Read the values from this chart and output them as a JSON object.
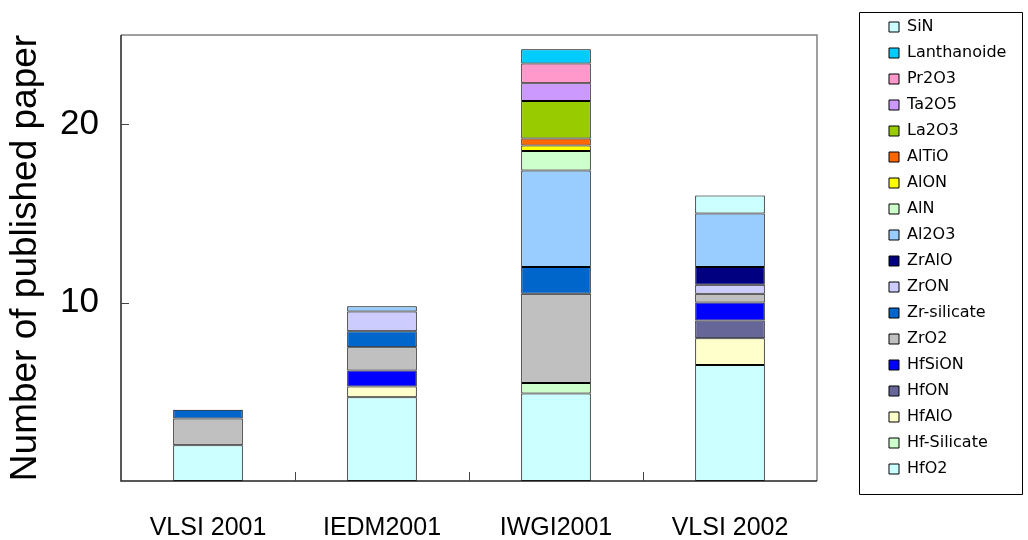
{
  "chart_data": {
    "type": "bar",
    "stacked": true,
    "ylabel": "Number of published paper",
    "categories": [
      "VLSI 2001",
      "IEDM2001",
      "IWGI2001",
      "VLSI 2002"
    ],
    "ylim": [
      0,
      25
    ],
    "yticks": [
      10,
      20
    ],
    "legend": "right",
    "series": [
      {
        "name": "HfO2",
        "color": "#ccffff",
        "values": [
          2,
          4.7,
          4.9,
          6.5
        ]
      },
      {
        "name": "Hf-Silicate",
        "color": "#ccffcc",
        "values": [
          null,
          null,
          0.6,
          null
        ]
      },
      {
        "name": "HfAlO",
        "color": "#ffffcc",
        "values": [
          null,
          0.6,
          null,
          1.5
        ]
      },
      {
        "name": "HfON",
        "color": "#666699",
        "values": [
          null,
          null,
          null,
          1.0
        ]
      },
      {
        "name": "HfSiON",
        "color": "#0000ff",
        "values": [
          null,
          0.9,
          null,
          1.0
        ]
      },
      {
        "name": "ZrO2",
        "color": "#c0c0c0",
        "values": [
          1.5,
          1.3,
          5.0,
          0.5
        ]
      },
      {
        "name": "Zr-silicate",
        "color": "#0066cc",
        "values": [
          0.5,
          0.9,
          1.5,
          null
        ]
      },
      {
        "name": "ZrON",
        "color": "#ccccff",
        "values": [
          null,
          1.1,
          null,
          0.5
        ]
      },
      {
        "name": "ZrAlO",
        "color": "#000080",
        "values": [
          null,
          null,
          null,
          1.0
        ]
      },
      {
        "name": "Al2O3",
        "color": "#99ccff",
        "values": [
          null,
          0.3,
          5.4,
          3.0
        ]
      },
      {
        "name": "AlN",
        "color": "#ccffcc",
        "values": [
          null,
          null,
          1.1,
          null
        ]
      },
      {
        "name": "AlON",
        "color": "#ffff00",
        "values": [
          null,
          null,
          0.3,
          null
        ]
      },
      {
        "name": "AlTiO",
        "color": "#ff6600",
        "values": [
          null,
          null,
          0.4,
          null
        ]
      },
      {
        "name": "La2O3",
        "color": "#99cc00",
        "values": [
          null,
          null,
          2.1,
          null
        ]
      },
      {
        "name": "Ta2O5",
        "color": "#cc99ff",
        "values": [
          null,
          null,
          1.0,
          null
        ]
      },
      {
        "name": "Pr2O3",
        "color": "#ff99cc",
        "values": [
          null,
          null,
          1.1,
          null
        ]
      },
      {
        "name": "Lanthanoide",
        "color": "#00ccff",
        "values": [
          null,
          null,
          0.8,
          null
        ]
      },
      {
        "name": "SiN",
        "color": "#ccffff",
        "values": [
          null,
          null,
          null,
          1.0
        ]
      }
    ]
  }
}
